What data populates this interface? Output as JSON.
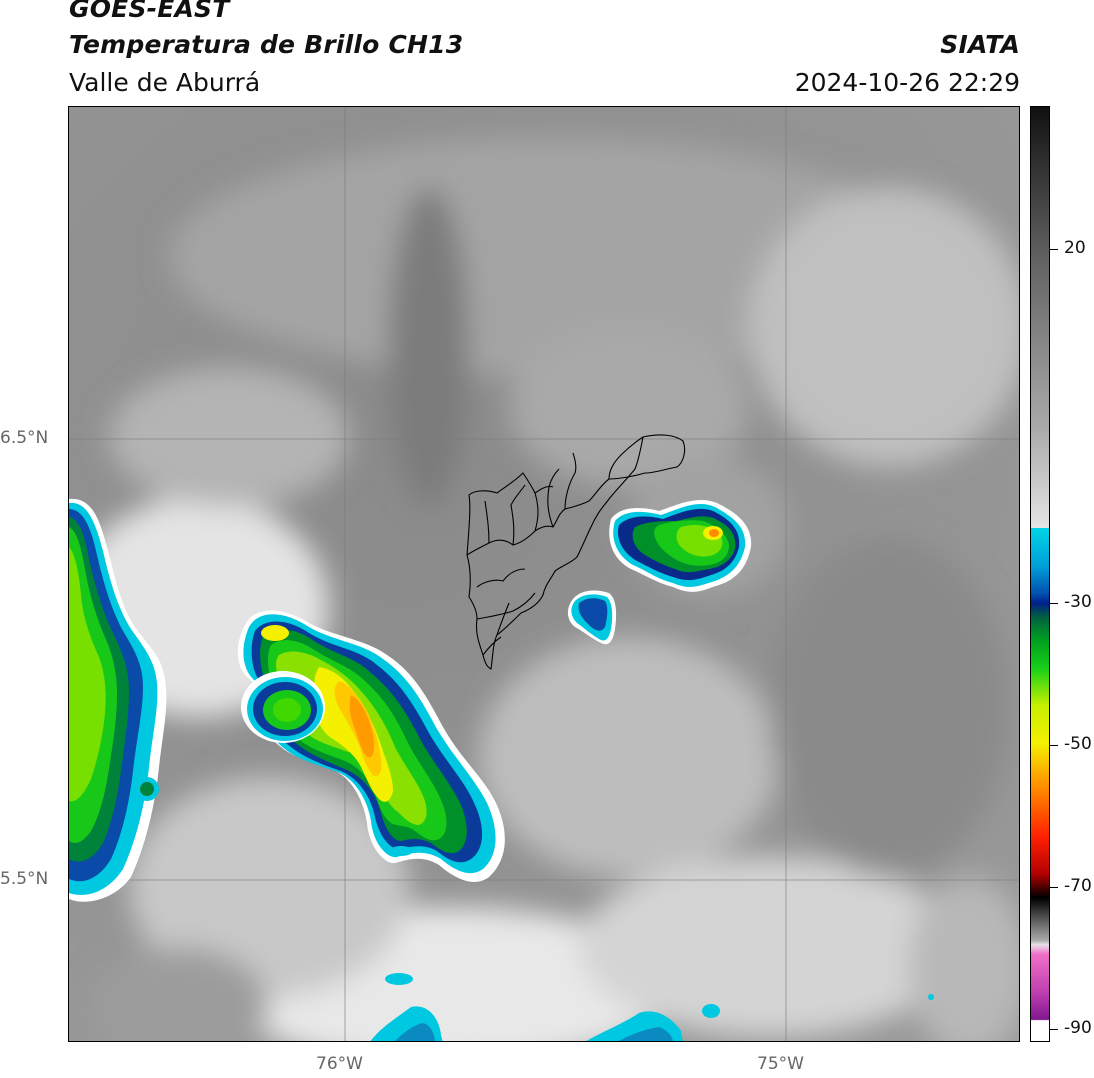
{
  "header": {
    "satellite": "GOES-EAST",
    "product": "Temperatura de Brillo CH13",
    "agency": "SIATA",
    "region": "Valle de Aburrá",
    "timestamp": "2024-10-26 22:29"
  },
  "map": {
    "lat_labels": [
      "6.5°N",
      "5.5°N"
    ],
    "lon_labels": [
      "76°W",
      "75°W"
    ],
    "lon_range": [
      -76.62,
      -74.46
    ],
    "lat_range": [
      5.13,
      7.25
    ],
    "gridlines": true,
    "background_color": "#8f8f8f"
  },
  "colorbar": {
    "ticks": [
      "20",
      "-30",
      "-50",
      "-70",
      "-90"
    ],
    "tick_values": [
      20,
      -30,
      -50,
      -70,
      -90
    ],
    "range": [
      -92,
      39
    ],
    "colors": {
      "cold_magenta": "#d04ad0",
      "black": "#000000",
      "red": "#e01010",
      "orange": "#ff9a00",
      "yellow": "#f4f000",
      "green": "#18c818",
      "dark_blue": "#001a7a",
      "cyan": "#00c8e0",
      "light_gray": "#f2f2f2",
      "dark_gray": "#202020"
    }
  }
}
